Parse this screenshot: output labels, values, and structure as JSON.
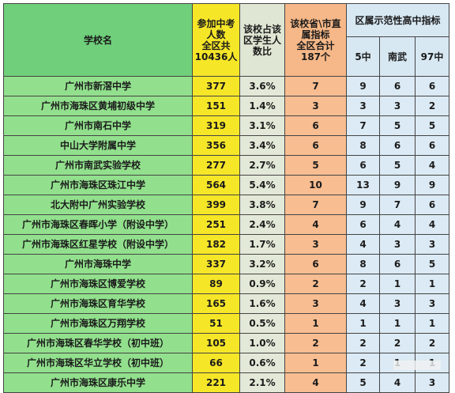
{
  "header": {
    "school": "学校名",
    "candidates": [
      "参加中考",
      "人数",
      "全区共",
      "10436人"
    ],
    "ratio": [
      "该校占该",
      "区学生人",
      "数比"
    ],
    "quota": [
      "该校省\\市直",
      "属指标",
      "全区合计",
      "187个"
    ],
    "demo_group": "区属示范性高中指标",
    "demo_cols": [
      "5中",
      "南武",
      "97中"
    ]
  },
  "rows": [
    {
      "school": "广州市新滘中学",
      "count": "377",
      "ratio": "3.6%",
      "quota": "7",
      "c5": "9",
      "nanwu": "6",
      "c97": "6"
    },
    {
      "school": "广州市海珠区黄埔初级中学",
      "count": "151",
      "ratio": "1.4%",
      "quota": "3",
      "c5": "3",
      "nanwu": "3",
      "c97": "2"
    },
    {
      "school": "广州市南石中学",
      "count": "319",
      "ratio": "3.1%",
      "quota": "6",
      "c5": "7",
      "nanwu": "5",
      "c97": "5"
    },
    {
      "school": "中山大学附属中学",
      "count": "356",
      "ratio": "3.4%",
      "quota": "6",
      "c5": "8",
      "nanwu": "6",
      "c97": "6"
    },
    {
      "school": "广州市南武实验学校",
      "count": "277",
      "ratio": "2.7%",
      "quota": "5",
      "c5": "6",
      "nanwu": "5",
      "c97": "4"
    },
    {
      "school": "广州市海珠区珠江中学",
      "count": "564",
      "ratio": "5.4%",
      "quota": "10",
      "c5": "13",
      "nanwu": "9",
      "c97": "9"
    },
    {
      "school": "北大附中广州实验学校",
      "count": "399",
      "ratio": "3.8%",
      "quota": "7",
      "c5": "9",
      "nanwu": "7",
      "c97": "6"
    },
    {
      "school": "广州市海珠区春晖小学（附设中学）",
      "count": "251",
      "ratio": "2.4%",
      "quota": "4",
      "c5": "6",
      "nanwu": "4",
      "c97": "4"
    },
    {
      "school": "广州市海珠区红星学校（附设中学）",
      "count": "182",
      "ratio": "1.7%",
      "quota": "3",
      "c5": "4",
      "nanwu": "3",
      "c97": "3"
    },
    {
      "school": "广州市海珠中学",
      "count": "337",
      "ratio": "3.2%",
      "quota": "6",
      "c5": "8",
      "nanwu": "6",
      "c97": "5"
    },
    {
      "school": "广州市海珠区博爱学校",
      "count": "89",
      "ratio": "0.9%",
      "quota": "2",
      "c5": "2",
      "nanwu": "1",
      "c97": "1"
    },
    {
      "school": "广州市海珠区育华学校",
      "count": "165",
      "ratio": "1.6%",
      "quota": "3",
      "c5": "4",
      "nanwu": "3",
      "c97": "3"
    },
    {
      "school": "广州市海珠区万翔学校",
      "count": "51",
      "ratio": "0.5%",
      "quota": "1",
      "c5": "1",
      "nanwu": "1",
      "c97": "1"
    },
    {
      "school": "广州市海珠区春华学校（初中班）",
      "count": "105",
      "ratio": "1.0%",
      "quota": "2",
      "c5": "2",
      "nanwu": "2",
      "c97": "2"
    },
    {
      "school": "广州市海珠区华立学校（初中班）",
      "count": "66",
      "ratio": "0.6%",
      "quota": "1",
      "c5": "2",
      "nanwu": "1",
      "c97": "1"
    },
    {
      "school": "广州市海珠区康乐中学",
      "count": "221",
      "ratio": "2.1%",
      "quota": "4",
      "c5": "5",
      "nanwu": "4",
      "c97": "3"
    }
  ],
  "colors": {
    "school": "#92e08d",
    "count": "#f6e628",
    "ratio": "#e3e9d8",
    "quota": "#f8bd91",
    "demo": "#dbeaf4"
  }
}
